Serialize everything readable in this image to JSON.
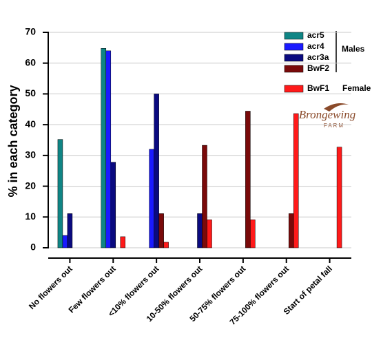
{
  "chart_data": {
    "type": "bar",
    "y_label": "% in each category",
    "categories": [
      "No flowers out",
      "Few flowers out",
      "<10% flowers out",
      "10-50% flowers out",
      "50-75% flowers out",
      "75-100% flowers out",
      "Start of petal fall"
    ],
    "series": [
      {
        "name": "acr5",
        "color": "#0f8585",
        "values": [
          35.2,
          64.8,
          0,
          0,
          0,
          0,
          0
        ]
      },
      {
        "name": "acr4",
        "color": "#1a1aff",
        "values": [
          4,
          64,
          32,
          0,
          0,
          0,
          0
        ]
      },
      {
        "name": "acr3a",
        "color": "#0a0a80",
        "values": [
          11.1,
          27.8,
          50,
          11.1,
          0,
          0,
          0
        ]
      },
      {
        "name": "BwF2",
        "color": "#7a0a0a",
        "values": [
          0,
          0,
          11.1,
          33.3,
          44.4,
          11.1,
          0
        ]
      },
      {
        "name": "BwF1",
        "color": "#ff1a1a",
        "values": [
          0,
          3.6,
          1.8,
          9.1,
          9.1,
          43.6,
          32.7
        ]
      }
    ],
    "ylim": [
      0,
      70
    ],
    "yticks": [
      0,
      10,
      20,
      30,
      40,
      50,
      60,
      70
    ],
    "grid": true,
    "annotations": {
      "males": "Males",
      "female": "Female",
      "logo": "Brongewing",
      "logo_sub": "FARM"
    }
  }
}
